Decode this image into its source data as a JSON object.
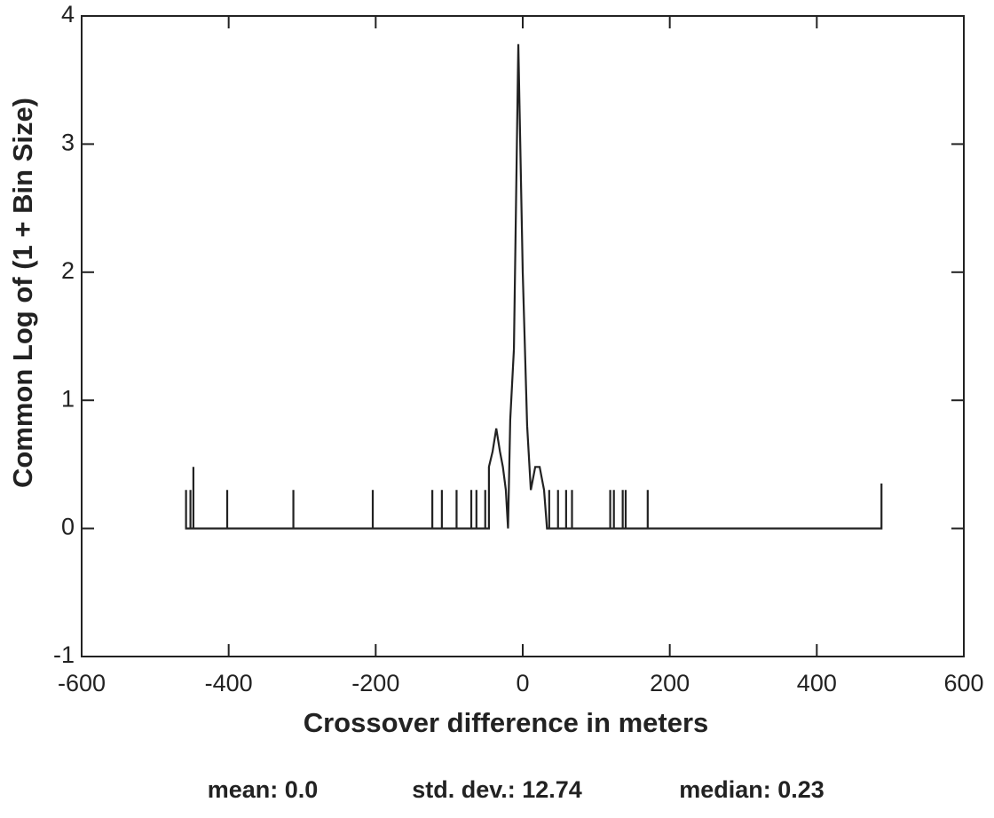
{
  "chart_data": {
    "type": "line",
    "xlabel": "Crossover difference in meters",
    "ylabel": "Common Log of (1 + Bin Size)",
    "stats": [
      "mean: 0.0",
      "std. dev.: 12.74",
      "median: 0.23"
    ],
    "color": "#222222",
    "xlim": [
      -600,
      600
    ],
    "ylim": [
      -1,
      4
    ],
    "xticks": [
      -600,
      -400,
      -200,
      0,
      200,
      400,
      600
    ],
    "yticks": [
      -1,
      0,
      1,
      2,
      3,
      4
    ],
    "x": [
      -458,
      -458,
      -458,
      -452,
      -452,
      -452,
      -448,
      -448,
      -448,
      -402,
      -402,
      -402,
      -312,
      -312,
      -312,
      -204,
      -204,
      -204,
      -123,
      -123,
      -123,
      -110,
      -110,
      -110,
      -90,
      -90,
      -90,
      -70,
      -70,
      -70,
      -63,
      -63,
      -63,
      -51,
      -51,
      -51,
      -46,
      -46,
      -41,
      -36,
      -31,
      -27,
      -23,
      -20,
      -17,
      -12,
      -6,
      0,
      6,
      11,
      17,
      23,
      29,
      33,
      36,
      36,
      36,
      48,
      48,
      48,
      59,
      59,
      59,
      67,
      67,
      67,
      119,
      119,
      119,
      124,
      124,
      124,
      136,
      136,
      136,
      140,
      140,
      140,
      170,
      170,
      170,
      488,
      488,
      488
    ],
    "values": [
      0,
      0.3,
      0,
      0,
      0.3,
      0,
      0,
      0.48,
      0,
      0,
      0.3,
      0,
      0,
      0.3,
      0,
      0,
      0.3,
      0,
      0,
      0.3,
      0,
      0,
      0.3,
      0,
      0,
      0.3,
      0,
      0,
      0.3,
      0,
      0,
      0.3,
      0,
      0,
      0.3,
      0,
      0,
      0.48,
      0.6,
      0.78,
      0.6,
      0.48,
      0.3,
      0,
      0.85,
      1.4,
      3.78,
      2.0,
      0.8,
      0.3,
      0.48,
      0.48,
      0.3,
      0,
      0,
      0.3,
      0,
      0,
      0.3,
      0,
      0,
      0.3,
      0,
      0,
      0.3,
      0,
      0,
      0.3,
      0,
      0,
      0.3,
      0,
      0,
      0.3,
      0,
      0,
      0.3,
      0,
      0,
      0.3,
      0,
      0,
      0.35,
      0
    ]
  }
}
